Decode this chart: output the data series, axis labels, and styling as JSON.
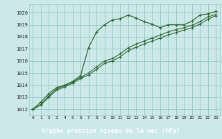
{
  "title": "Graphe pression niveau de la mer (hPa)",
  "bg_color": "#cce8e8",
  "grid_color": "#99cccc",
  "line_color": "#2d6a2d",
  "label_bg": "#336633",
  "label_fg": "#ffffff",
  "xlim": [
    -0.5,
    23.5
  ],
  "ylim": [
    1011.5,
    1020.7
  ],
  "yticks": [
    1012,
    1013,
    1014,
    1015,
    1016,
    1017,
    1018,
    1019,
    1020
  ],
  "xticks": [
    0,
    1,
    2,
    3,
    4,
    5,
    6,
    7,
    8,
    9,
    10,
    11,
    12,
    13,
    14,
    15,
    16,
    17,
    18,
    19,
    20,
    21,
    22,
    23
  ],
  "series1_x": [
    0,
    1,
    2,
    3,
    4,
    5,
    6,
    7,
    8,
    9,
    10,
    11,
    12,
    13,
    14,
    15,
    16,
    17,
    18,
    19,
    20,
    21,
    22,
    23
  ],
  "series1_y": [
    1012.0,
    1012.6,
    1013.3,
    1013.8,
    1014.0,
    1014.3,
    1014.8,
    1017.1,
    1018.4,
    1019.0,
    1019.4,
    1019.5,
    1019.8,
    1019.55,
    1019.25,
    1019.05,
    1018.75,
    1019.0,
    1019.0,
    1019.0,
    1019.3,
    1019.8,
    1019.9,
    1020.1
  ],
  "series2_x": [
    0,
    1,
    2,
    3,
    4,
    5,
    6,
    7,
    8,
    9,
    10,
    11,
    12,
    13,
    14,
    15,
    16,
    17,
    18,
    19,
    20,
    21,
    22,
    23
  ],
  "series2_y": [
    1012.0,
    1012.4,
    1013.1,
    1013.7,
    1013.95,
    1014.25,
    1014.65,
    1015.0,
    1015.5,
    1016.0,
    1016.2,
    1016.6,
    1017.1,
    1017.4,
    1017.65,
    1017.9,
    1018.15,
    1018.4,
    1018.6,
    1018.75,
    1018.95,
    1019.25,
    1019.65,
    1019.85
  ],
  "series3_x": [
    0,
    1,
    2,
    3,
    4,
    5,
    6,
    7,
    8,
    9,
    10,
    11,
    12,
    13,
    14,
    15,
    16,
    17,
    18,
    19,
    20,
    21,
    22,
    23
  ],
  "series3_y": [
    1012.0,
    1012.35,
    1013.0,
    1013.6,
    1013.85,
    1014.15,
    1014.55,
    1014.85,
    1015.3,
    1015.8,
    1016.0,
    1016.35,
    1016.85,
    1017.15,
    1017.4,
    1017.65,
    1017.9,
    1018.15,
    1018.35,
    1018.55,
    1018.75,
    1019.05,
    1019.45,
    1019.75
  ]
}
